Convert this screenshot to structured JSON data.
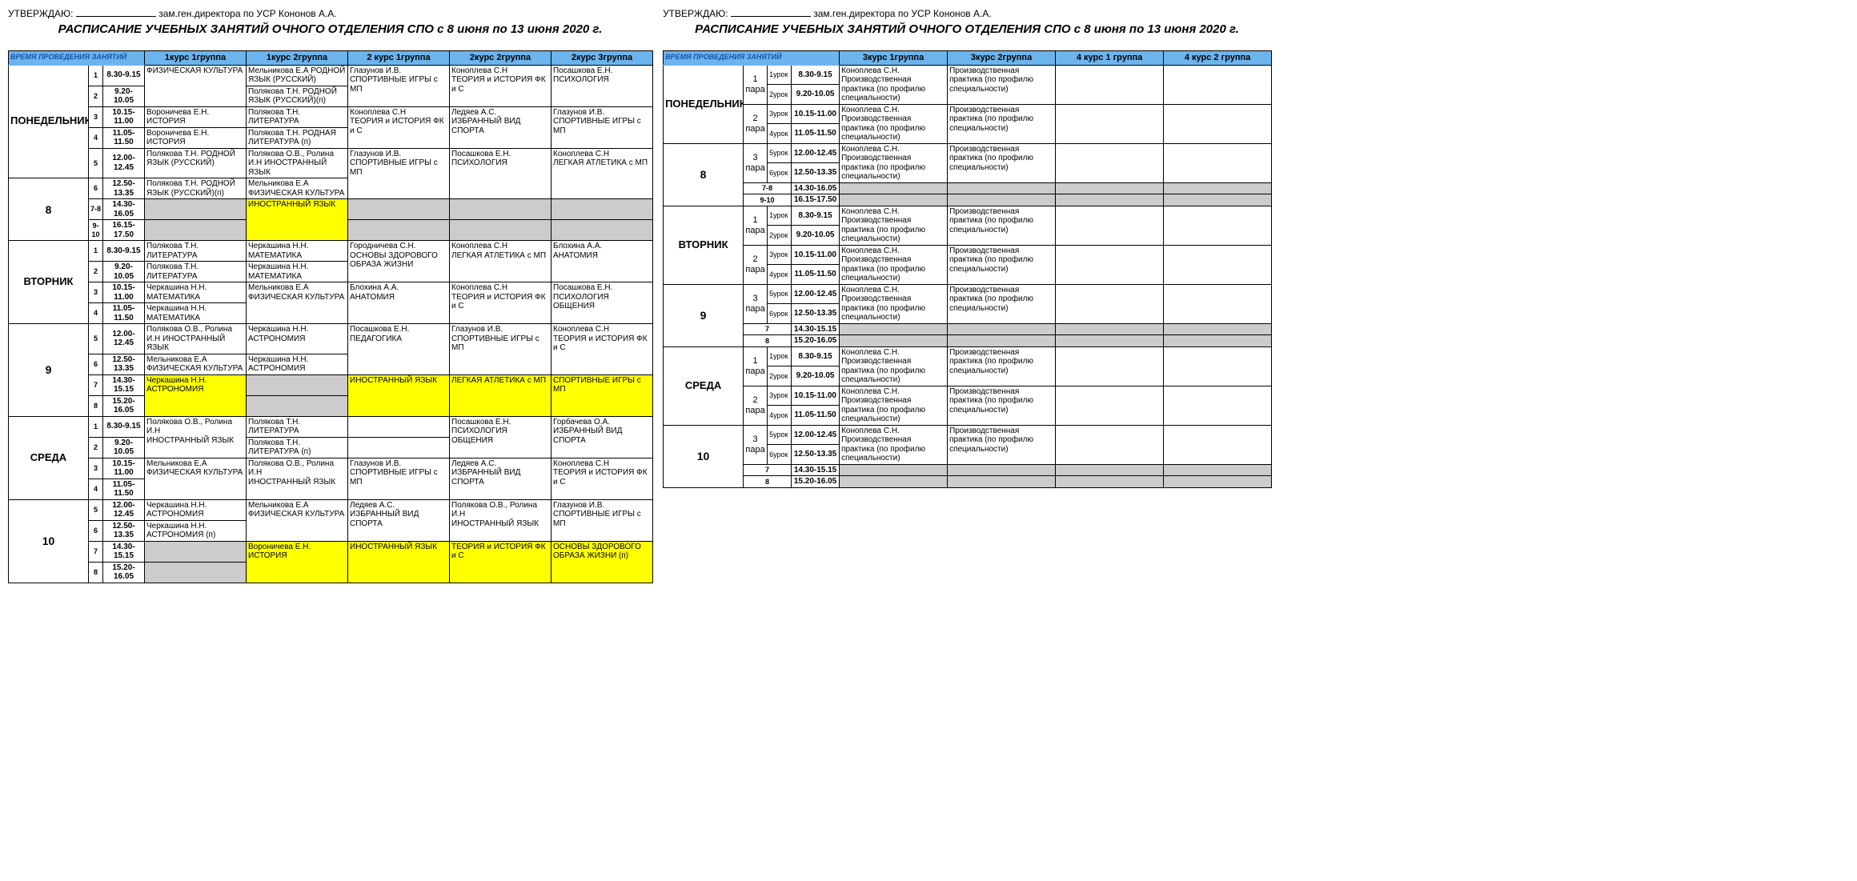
{
  "approve_prefix": "УТВЕРЖДАЮ:",
  "approve_suffix": "зам.ген.директора по УСР Кононов А.А.",
  "title": "РАСПИСАНИЕ УЧЕБНЫХ ЗАНЯТИЙ ОЧНОГО ОТДЕЛЕНИЯ СПО с 8 июня по 13 июня 2020 г.",
  "time_header": "ВРЕМЯ ПРОВЕДЕНИЯ ЗАНЯТИЙ",
  "colors": {
    "header": "#6cb4ee",
    "grey": "#cccccc",
    "yellow": "#ffff00"
  },
  "left": {
    "groups": [
      "1курс 1группа",
      "1курс 2группа",
      "2 курс 1группа",
      "2курс 2группа",
      "2курс 3группа"
    ],
    "days": [
      {
        "name": "ПОНЕДЕЛЬНИК",
        "num": "8",
        "rows": [
          {
            "n": "1",
            "t": "8.30-9.15",
            "c": [
              {
                "text": "ФИЗИЧЕСКАЯ КУЛЬТУРА",
                "span": 2
              },
              {
                "text": "Мельникова Е.А РОДНОЙ ЯЗЫК (РУССКИЙ)"
              },
              {
                "text": "Глазунов И.В.\nСПОРТИВНЫЕ ИГРЫ с МП",
                "span": 2
              },
              {
                "text": "Коноплева С.Н\nТЕОРИЯ и ИСТОРИЯ ФК и С",
                "span": 2
              },
              {
                "text": "Посашкова Е.Н.\nПСИХОЛОГИЯ",
                "span": 2
              }
            ]
          },
          {
            "n": "2",
            "t": "9.20-10.05",
            "c": [
              null,
              {
                "text": "Полякова Т.Н. РОДНОЙ ЯЗЫК (РУССКИЙ)(п)"
              },
              null,
              null,
              null
            ]
          },
          {
            "n": "3",
            "t": "10.15-11.00",
            "c": [
              {
                "text": "Вороничева Е.Н. ИСТОРИЯ"
              },
              {
                "text": "Полякова Т.Н. ЛИТЕРАТУРА"
              },
              {
                "text": "Коноплева С.Н\nТЕОРИЯ и ИСТОРИЯ ФК и С",
                "span": 2
              },
              {
                "text": "Ледяев А.С.\nИЗБРАННЫЙ ВИД СПОРТА",
                "span": 2
              },
              {
                "text": "Глазунов И.В.\nСПОРТИВНЫЕ ИГРЫ с МП",
                "span": 2
              }
            ]
          },
          {
            "n": "4",
            "t": "11.05-11.50",
            "c": [
              {
                "text": "Вороничева Е.Н. ИСТОРИЯ"
              },
              {
                "text": "Полякова Т.Н. РОДНАЯ ЛИТЕРАТУРА (п)"
              },
              null,
              null,
              null
            ]
          },
          {
            "n": "5",
            "t": "12.00-12.45",
            "c": [
              {
                "text": "Полякова Т.Н. РОДНОЙ ЯЗЫК (РУССКИЙ)"
              },
              {
                "text": "Полякова О.В., Ролина И.Н ИНОСТРАННЫЙ ЯЗЫК"
              },
              {
                "text": "Глазунов И.В.\nСПОРТИВНЫЕ ИГРЫ с МП",
                "span": 2
              },
              {
                "text": "Посашкова Е.Н.\nПСИХОЛОГИЯ",
                "span": 2
              },
              {
                "text": "Коноплева С.Н\nЛЕГКАЯ АТЛЕТИКА с МП",
                "span": 2
              }
            ]
          },
          {
            "n": "6",
            "t": "12.50-13.35",
            "c": [
              {
                "text": "Полякова Т.Н. РОДНОЙ ЯЗЫК (РУССКИЙ)(п)"
              },
              {
                "text": "Мельникова Е.А ФИЗИЧЕСКАЯ КУЛЬТУРА"
              },
              null,
              null,
              null
            ]
          },
          {
            "n": "7-8",
            "t": "14.30-16.05",
            "c": [
              {
                "text": "",
                "cls": "grey"
              },
              {
                "text": "ИНОСТРАННЫЙ ЯЗЫК",
                "cls": "yellow",
                "span": 2
              },
              {
                "text": "",
                "cls": "grey"
              },
              {
                "text": "",
                "cls": "grey"
              },
              {
                "text": "",
                "cls": "grey"
              }
            ]
          },
          {
            "n": "9-10",
            "t": "16.15-17.50",
            "c": [
              {
                "text": "",
                "cls": "grey"
              },
              null,
              {
                "text": "",
                "cls": "grey"
              },
              {
                "text": "",
                "cls": "grey"
              },
              {
                "text": "",
                "cls": "grey"
              }
            ]
          }
        ]
      },
      {
        "name": "ВТОРНИК",
        "num": "9",
        "rows": [
          {
            "n": "1",
            "t": "8.30-9.15",
            "c": [
              {
                "text": "Полякова Т.Н. ЛИТЕРАТУРА"
              },
              {
                "text": "Черкашина Н.Н. МАТЕМАТИКА"
              },
              {
                "text": "Городничева С.Н.\nОСНОВЫ ЗДОРОВОГО ОБРАЗА ЖИЗНИ",
                "span": 2
              },
              {
                "text": "Коноплева С.Н\nЛЕГКАЯ АТЛЕТИКА с МП",
                "span": 2
              },
              {
                "text": "Блохина А.А.\nАНАТОМИЯ",
                "span": 2
              }
            ]
          },
          {
            "n": "2",
            "t": "9.20-10.05",
            "c": [
              {
                "text": "Полякова Т.Н. ЛИТЕРАТУРА"
              },
              {
                "text": "Черкашина Н.Н. МАТЕМАТИКА"
              },
              null,
              null,
              null
            ]
          },
          {
            "n": "3",
            "t": "10.15-11.00",
            "c": [
              {
                "text": "Черкашина Н.Н. МАТЕМАТИКА"
              },
              {
                "text": "Мельникова Е.А\nФИЗИЧЕСКАЯ КУЛЬТУРА",
                "span": 2
              },
              {
                "text": "Блохина А.А.\nАНАТОМИЯ",
                "span": 2
              },
              {
                "text": "Коноплева С.Н\nТЕОРИЯ и ИСТОРИЯ ФК и С",
                "span": 2
              },
              {
                "text": "Посашкова Е.Н.\nПСИХОЛОГИЯ ОБЩЕНИЯ",
                "span": 2
              }
            ]
          },
          {
            "n": "4",
            "t": "11.05-11.50",
            "c": [
              {
                "text": "Черкашина Н.Н. МАТЕМАТИКА"
              },
              null,
              null,
              null,
              null
            ]
          },
          {
            "n": "5",
            "t": "12.00-12.45",
            "c": [
              {
                "text": "Полякова О.В., Ролина И.Н ИНОСТРАННЫЙ ЯЗЫК"
              },
              {
                "text": "Черкашина Н.Н. АСТРОНОМИЯ"
              },
              {
                "text": "Посашкова Е.Н.\nПЕДАГОГИКА",
                "span": 2
              },
              {
                "text": "Глазунов И.В.\nСПОРТИВНЫЕ ИГРЫ с МП",
                "span": 2
              },
              {
                "text": "Коноплева С.Н\nТЕОРИЯ и ИСТОРИЯ ФК и С",
                "span": 2
              }
            ]
          },
          {
            "n": "6",
            "t": "12.50-13.35",
            "c": [
              {
                "text": "Мельникова Е.А ФИЗИЧЕСКАЯ КУЛЬТУРА"
              },
              {
                "text": "Черкашина Н.Н. АСТРОНОМИЯ"
              },
              null,
              null,
              null
            ]
          },
          {
            "n": "7",
            "t": "14.30-15.15",
            "c": [
              {
                "text": "Черкашина Н.Н.\nАСТРОНОМИЯ",
                "cls": "yellow",
                "span": 2
              },
              {
                "text": "",
                "cls": "grey"
              },
              {
                "text": "ИНОСТРАННЫЙ ЯЗЫК",
                "cls": "yellow",
                "span": 2
              },
              {
                "text": "ЛЕГКАЯ АТЛЕТИКА с МП",
                "cls": "yellow",
                "span": 2
              },
              {
                "text": "СПОРТИВНЫЕ ИГРЫ с МП",
                "cls": "yellow",
                "span": 2
              }
            ]
          },
          {
            "n": "8",
            "t": "15.20-16.05",
            "c": [
              null,
              {
                "text": "",
                "cls": "grey"
              },
              null,
              null,
              null
            ]
          }
        ]
      },
      {
        "name": "СРЕДА",
        "num": "10",
        "rows": [
          {
            "n": "1",
            "t": "8.30-9.15",
            "c": [
              {
                "text": "Полякова О.В., Ролина И.Н\nИНОСТРАННЫЙ ЯЗЫК",
                "span": 2
              },
              {
                "text": "Полякова Т.Н. ЛИТЕРАТУРА"
              },
              {
                "text": ""
              },
              {
                "text": "Посашкова Е.Н.\nПСИХОЛОГИЯ ОБЩЕНИЯ",
                "span": 2
              },
              {
                "text": "Горбачева О.А.\nИЗБРАННЫЙ ВИД СПОРТА",
                "span": 2
              }
            ]
          },
          {
            "n": "2",
            "t": "9.20-10.05",
            "c": [
              null,
              {
                "text": "Полякова Т.Н. ЛИТЕРАТУРА (п)"
              },
              {
                "text": ""
              },
              null,
              null
            ]
          },
          {
            "n": "3",
            "t": "10.15-11.00",
            "c": [
              {
                "text": "Мельникова Е.А\nФИЗИЧЕСКАЯ КУЛЬТУРА",
                "span": 2
              },
              {
                "text": "Полякова О.В., Ролина И.Н\nИНОСТРАННЫЙ ЯЗЫК",
                "span": 2
              },
              {
                "text": "Глазунов И.В.\nСПОРТИВНЫЕ ИГРЫ с МП",
                "span": 2
              },
              {
                "text": "Ледяев А.С.\nИЗБРАННЫЙ ВИД СПОРТА",
                "span": 2
              },
              {
                "text": "Коноплева С.Н\nТЕОРИЯ и ИСТОРИЯ ФК и С",
                "span": 2
              }
            ]
          },
          {
            "n": "4",
            "t": "11.05-11.50",
            "c": [
              null,
              null,
              null,
              null,
              null
            ]
          },
          {
            "n": "5",
            "t": "12.00-12.45",
            "c": [
              {
                "text": "Черкашина Н.Н. АСТРОНОМИЯ"
              },
              {
                "text": "Мельникова Е.А\nФИЗИЧЕСКАЯ КУЛЬТУРА",
                "span": 2
              },
              {
                "text": "Ледяев А.С.\nИЗБРАННЫЙ ВИД СПОРТА",
                "span": 2
              },
              {
                "text": "Полякова О.В., Ролина И.Н\nИНОСТРАННЫЙ ЯЗЫК",
                "span": 2
              },
              {
                "text": "Глазунов И.В.\nСПОРТИВНЫЕ ИГРЫ с МП",
                "span": 2
              }
            ]
          },
          {
            "n": "6",
            "t": "12.50-13.35",
            "c": [
              {
                "text": "Черкашина Н.Н. АСТРОНОМИЯ (п)"
              },
              null,
              null,
              null,
              null
            ]
          },
          {
            "n": "7",
            "t": "14.30-15.15",
            "c": [
              {
                "text": "",
                "cls": "grey"
              },
              {
                "text": "Вороничева Е.Н.\nИСТОРИЯ",
                "cls": "yellow",
                "span": 2
              },
              {
                "text": "ИНОСТРАННЫЙ ЯЗЫК",
                "cls": "yellow",
                "span": 2
              },
              {
                "text": "ТЕОРИЯ и ИСТОРИЯ ФК и С",
                "cls": "yellow",
                "span": 2
              },
              {
                "text": "ОСНОВЫ ЗДОРОВОГО ОБРАЗА ЖИЗНИ (п)",
                "cls": "yellow",
                "span": 2
              }
            ]
          },
          {
            "n": "8",
            "t": "15.20-16.05",
            "c": [
              {
                "text": "",
                "cls": "grey"
              },
              null,
              null,
              null,
              null
            ]
          }
        ]
      }
    ]
  },
  "right": {
    "groups": [
      "3курс 1группа",
      "3курс 2группа",
      "4 курс 1 группа",
      "4 курс 2 группа"
    ],
    "practice1": "Коноплева С.Н.\nПроизводственная практика (по профилю специальности)",
    "practice2": "Производственная практика (по профилю специальности)",
    "days": [
      {
        "name": "ПОНЕДЕЛЬНИК",
        "num": "8",
        "pairs": [
          {
            "p": "1",
            "lessons": [
              {
                "n": "1урок",
                "t": "8.30-9.15"
              },
              {
                "n": "2урок",
                "t": "9.20-10.05"
              }
            ]
          },
          {
            "p": "2",
            "lessons": [
              {
                "n": "3урок",
                "t": "10.15-11.00"
              },
              {
                "n": "4урок",
                "t": "11.05-11.50"
              }
            ]
          },
          {
            "p": "3",
            "lessons": [
              {
                "n": "5урок",
                "t": "12.00-12.45"
              },
              {
                "n": "6урок",
                "t": "12.50-13.35"
              }
            ]
          }
        ],
        "extra": [
          {
            "n": "7-8",
            "t": "14.30-16.05"
          },
          {
            "n": "9-10",
            "t": "16.15-17.50"
          }
        ]
      },
      {
        "name": "ВТОРНИК",
        "num": "9",
        "pairs": [
          {
            "p": "1",
            "lessons": [
              {
                "n": "1урок",
                "t": "8.30-9.15"
              },
              {
                "n": "2урок",
                "t": "9.20-10.05"
              }
            ]
          },
          {
            "p": "2",
            "lessons": [
              {
                "n": "3урок",
                "t": "10.15-11.00"
              },
              {
                "n": "4урок",
                "t": "11.05-11.50"
              }
            ]
          },
          {
            "p": "3",
            "lessons": [
              {
                "n": "5урок",
                "t": "12.00-12.45"
              },
              {
                "n": "6урок",
                "t": "12.50-13.35"
              }
            ]
          }
        ],
        "extra": [
          {
            "n": "7",
            "t": "14.30-15.15"
          },
          {
            "n": "8",
            "t": "15.20-16.05"
          }
        ]
      },
      {
        "name": "СРЕДА",
        "num": "10",
        "pairs": [
          {
            "p": "1",
            "lessons": [
              {
                "n": "1урок",
                "t": "8.30-9.15"
              },
              {
                "n": "2урок",
                "t": "9.20-10.05"
              }
            ]
          },
          {
            "p": "2",
            "lessons": [
              {
                "n": "3урок",
                "t": "10.15-11.00"
              },
              {
                "n": "4урок",
                "t": "11.05-11.50"
              }
            ]
          },
          {
            "p": "3",
            "lessons": [
              {
                "n": "5урок",
                "t": "12.00-12.45"
              },
              {
                "n": "6урок",
                "t": "12.50-13.35"
              }
            ]
          }
        ],
        "extra": [
          {
            "n": "7",
            "t": "14.30-15.15"
          },
          {
            "n": "8",
            "t": "15.20-16.05"
          }
        ]
      }
    ]
  }
}
